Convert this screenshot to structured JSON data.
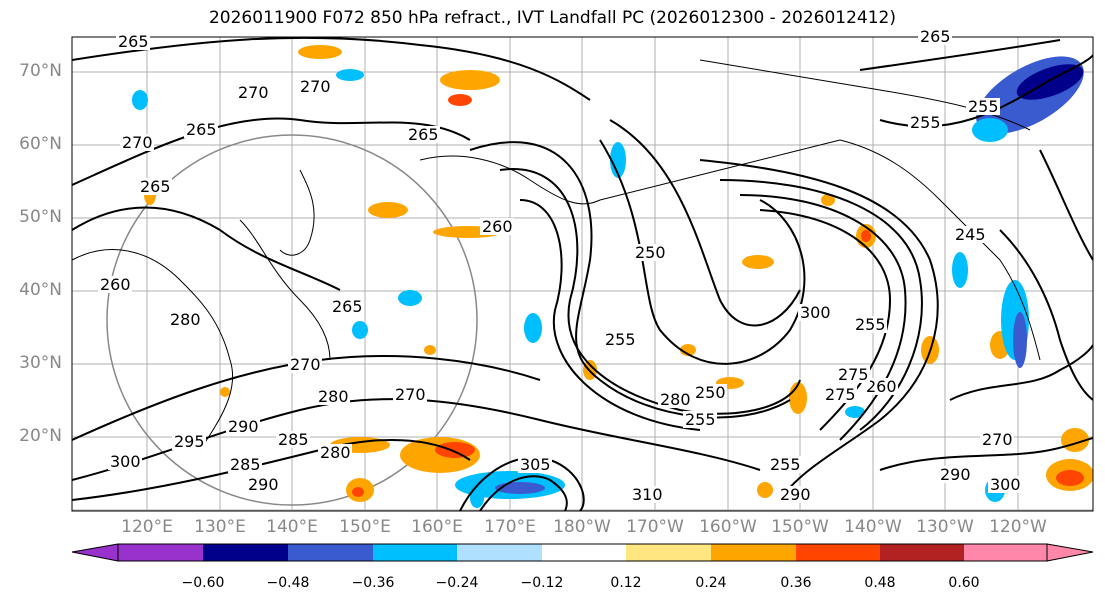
{
  "title": "2026011900 F072 850 hPa refract., IVT Landfall PC (2026012300 - 2026012412)",
  "map": {
    "lat_labels": [
      "70°N",
      "60°N",
      "50°N",
      "40°N",
      "30°N",
      "20°N"
    ],
    "lon_labels": [
      "120°E",
      "130°E",
      "140°E",
      "150°E",
      "160°E",
      "170°E",
      "180°W",
      "170°W",
      "160°W",
      "150°W",
      "140°W",
      "130°W",
      "120°W"
    ],
    "contour_labels": [
      "265",
      "270",
      "270",
      "265",
      "270",
      "265",
      "265",
      "265",
      "255",
      "255",
      "250",
      "260",
      "265",
      "255",
      "245",
      "255",
      "260",
      "270",
      "275",
      "280",
      "270",
      "290",
      "295",
      "285",
      "280",
      "305",
      "310",
      "300",
      "290",
      "290",
      "300",
      "285",
      "290",
      "300",
      "280",
      "255",
      "255",
      "250",
      "270",
      "280",
      "260",
      "275"
    ]
  },
  "colorbar": {
    "ticks": [
      "−0.60",
      "−0.48",
      "−0.36",
      "−0.24",
      "−0.12",
      "0.12",
      "0.24",
      "0.36",
      "0.48",
      "0.60"
    ],
    "colors": [
      "#9932cc",
      "#00008b",
      "#3a5bd0",
      "#00bfff",
      "#b0e0ff",
      "#ffffff",
      "#ffe680",
      "#ffa500",
      "#ff4500",
      "#b22222",
      "#ff88aa"
    ]
  }
}
